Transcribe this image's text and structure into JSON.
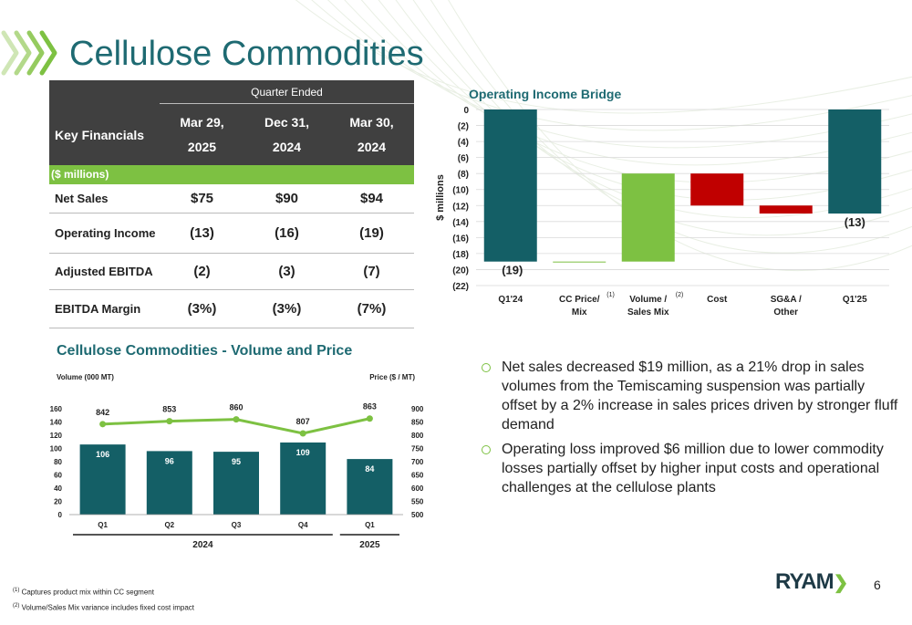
{
  "title": "Cellulose Commodities",
  "table": {
    "quarter_ended": "Quarter Ended",
    "key_financials": "Key Financials",
    "columns": [
      {
        "line1": "Mar 29,",
        "line2": "2025"
      },
      {
        "line1": "Dec 31,",
        "line2": "2024"
      },
      {
        "line1": "Mar 30,",
        "line2": "2024"
      }
    ],
    "units": "($ millions)",
    "rows": [
      {
        "label": "Net Sales",
        "values": [
          "$75",
          "$90",
          "$94"
        ]
      },
      {
        "label": "Operating Income",
        "values": [
          "(13)",
          "(16)",
          "(19)"
        ]
      },
      {
        "label": "Adjusted EBITDA",
        "values": [
          "(2)",
          "(3)",
          "(7)"
        ]
      },
      {
        "label": "EBITDA Margin",
        "values": [
          "(3%)",
          "(3%)",
          "(7%)"
        ]
      }
    ]
  },
  "bridge_title": "Operating Income Bridge",
  "vp_title": "Cellulose Commodities - Volume and Price",
  "chart_data": [
    {
      "type": "bar",
      "subtype": "waterfall",
      "title": "Operating Income Bridge",
      "ylabel": "$ millions",
      "ylim": [
        -22,
        0
      ],
      "yticks": [
        "0",
        "(2)",
        "(4)",
        "(6)",
        "(8)",
        "(10)",
        "(12)",
        "(14)",
        "(16)",
        "(18)",
        "(20)",
        "(22)"
      ],
      "grid": true,
      "categories": [
        {
          "label1": "Q1'24",
          "label2": "",
          "sup": ""
        },
        {
          "label1": "CC Price/",
          "label2": "Mix",
          "sup": "(1)"
        },
        {
          "label1": "Volume /",
          "label2": "Sales Mix",
          "sup": "(2)"
        },
        {
          "label1": "Cost",
          "label2": "",
          "sup": ""
        },
        {
          "label1": "SG&A /",
          "label2": "Other",
          "sup": ""
        },
        {
          "label1": "Q1'25",
          "label2": "",
          "sup": ""
        }
      ],
      "bars": [
        {
          "start": 0,
          "end": -19,
          "kind": "total",
          "color": "#145f66",
          "label": "(19)"
        },
        {
          "start": -19,
          "end": -19,
          "kind": "change",
          "color": "#7dc142",
          "label": ""
        },
        {
          "start": -19,
          "end": -8,
          "kind": "increase",
          "color": "#7dc142",
          "label": ""
        },
        {
          "start": -8,
          "end": -12,
          "kind": "decrease",
          "color": "#c00000",
          "label": ""
        },
        {
          "start": -12,
          "end": -13,
          "kind": "decrease",
          "color": "#c00000",
          "label": ""
        },
        {
          "start": 0,
          "end": -13,
          "kind": "total",
          "color": "#145f66",
          "label": "(13)"
        }
      ]
    },
    {
      "type": "bar",
      "combo": "bar+line",
      "title": "Cellulose Commodities - Volume and Price",
      "ylabel": "Volume (000 MT)",
      "y2label": "Price ($ / MT)",
      "ylim": [
        0,
        160
      ],
      "y2lim": [
        500,
        900
      ],
      "yticks": [
        "0",
        "20",
        "40",
        "60",
        "80",
        "100",
        "120",
        "140",
        "160"
      ],
      "y2ticks": [
        "500",
        "550",
        "600",
        "650",
        "700",
        "750",
        "800",
        "850",
        "900"
      ],
      "categories": [
        "Q1",
        "Q2",
        "Q3",
        "Q4",
        "Q1"
      ],
      "groups": [
        {
          "label": "2024",
          "count": 4
        },
        {
          "label": "2025",
          "count": 1
        }
      ],
      "series": [
        {
          "name": "Volume (000 MT)",
          "kind": "bar",
          "color": "#145f66",
          "values": [
            106,
            96,
            95,
            109,
            84
          ]
        },
        {
          "name": "Price ($ / MT)",
          "kind": "line",
          "color": "#7dc142",
          "values": [
            842,
            853,
            860,
            807,
            863
          ]
        }
      ]
    }
  ],
  "bullets": [
    "Net sales decreased $19 million, as a 21% drop in sales volumes from the Temiscaming suspension was partially offset by a 2% increase in sales prices driven by stronger fluff demand",
    "Operating loss improved $6 million due to lower commodity losses partially offset by higher input costs and operational challenges at the cellulose plants"
  ],
  "footnotes": [
    {
      "sup": "(1)",
      "text": "Captures product mix within CC segment"
    },
    {
      "sup": "(2)",
      "text": "Volume/Sales Mix variance includes fixed cost impact"
    }
  ],
  "logo": "RYAM",
  "page_number": "6",
  "colors": {
    "teal": "#145f66",
    "green": "#7dc142",
    "red": "#c00000",
    "title": "#1e6a72",
    "dark": "#404040"
  }
}
